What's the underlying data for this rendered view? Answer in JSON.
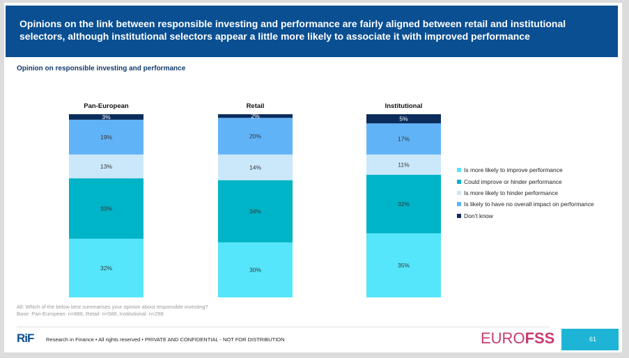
{
  "header": {
    "title": "Opinions on the link between responsible investing and performance are fairly aligned between retail and institutional selectors, although institutional selectors appear a little more likely to associate it with improved performance",
    "subtitle": "Opinion on responsible investing and performance"
  },
  "chart_data": {
    "type": "bar",
    "stacked": true,
    "unit": "%",
    "categories": [
      "Pan-European",
      "Retail",
      "Institutional"
    ],
    "series": [
      {
        "name": "Is more likely to improve performance",
        "color": "#55e6fb",
        "values": [
          32,
          30,
          35
        ]
      },
      {
        "name": "Could improve or hinder performance",
        "color": "#00b4c8",
        "values": [
          33,
          34,
          32
        ]
      },
      {
        "name": "Is more likely to hinder performance",
        "color": "#cbe8fb",
        "values": [
          13,
          14,
          11
        ]
      },
      {
        "name": "Is likely to have no overall impact on performance",
        "color": "#61b3f7",
        "values": [
          19,
          20,
          17
        ]
      },
      {
        "name": "Don't know",
        "color": "#0b2d5c",
        "values": [
          3,
          2,
          5
        ]
      }
    ],
    "ylim": [
      0,
      100
    ],
    "legend_position": "right"
  },
  "notes": {
    "question": "All: Which of the below best summarises your opinion about responsible investing?",
    "base": "Base: Pan-European: n=886, Retail: n=588, Institutional: n=298"
  },
  "footer": {
    "logo_text": "RiF",
    "text": "Research in Finance • All rights reserved • PRIVATE AND CONFIDENTIAL - NOT FOR DISTRIBUTION",
    "brand_part1": "EURO",
    "brand_part2": "FSS",
    "page_number": "61"
  }
}
